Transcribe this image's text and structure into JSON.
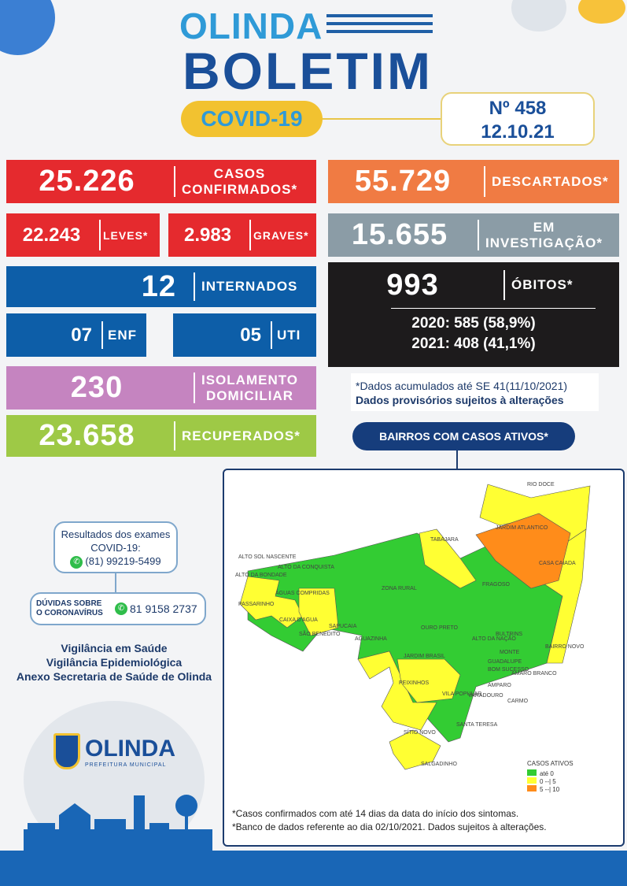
{
  "header": {
    "city": "OLINDA",
    "title": "BOLETIM",
    "badge": "COVID-19",
    "number": "Nº 458",
    "date": "12.10.21"
  },
  "stats": {
    "confirmed": {
      "value": "25.226",
      "label1": "CASOS",
      "label2": "CONFIRMADOS*"
    },
    "discarded": {
      "value": "55.729",
      "label": "DESCARTADOS*"
    },
    "mild": {
      "value": "22.243",
      "label": "LEVES*"
    },
    "severe": {
      "value": "2.983",
      "label": "GRAVES*"
    },
    "investigation": {
      "value": "15.655",
      "label1": "EM",
      "label2": "INVESTIGAÇÃO*"
    },
    "hospitalized": {
      "value": "12",
      "label": "INTERNADOS"
    },
    "deaths": {
      "value": "993",
      "label": "ÓBITOS*",
      "year2020": "2020: 585 (58,9%)",
      "year2021": "2021: 408 (41,1%)"
    },
    "ward": {
      "value": "07",
      "label": "ENF"
    },
    "icu": {
      "value": "05",
      "label": "UTI"
    },
    "isolation": {
      "value": "230",
      "label1": "ISOLAMENTO",
      "label2": "DOMICILIAR"
    },
    "recovered": {
      "value": "23.658",
      "label": "RECUPERADOS*"
    }
  },
  "notes": {
    "accumulated": "*Dados acumulados até SE 41(11/10/2021)",
    "provisional": "Dados provisórios sujeitos à alterações"
  },
  "map": {
    "title": "BAIRROS COM CASOS ATIVOS*",
    "legend_title": "CASOS ATIVOS",
    "legend": [
      {
        "label": "até 0",
        "color": "#33cc33"
      },
      {
        "label": "0 --| 5",
        "color": "#ffff33"
      },
      {
        "label": "5 --| 10",
        "color": "#ff8c1a"
      }
    ],
    "neighborhoods": [
      "RIO DOCE",
      "JARDIM ATLANTICO",
      "CASA CAIADA",
      "TABAJARA",
      "ALTO SOL NASCENTE",
      "ALTO DA CONQUISTA",
      "ALTO DA BONDADE",
      "ÁGUAS COMPRIDAS",
      "PASSARINHO",
      "ZONA RURAL",
      "FRAGOSO",
      "CAIXA D'AGUA",
      "SAPUCAIA",
      "SÃO BENEDITO",
      "AGUAZINHA",
      "OURO PRETO",
      "ALTO DA NAÇÃO",
      "BULTRINS",
      "BAIRRO NOVO",
      "MONTE",
      "JARDIM BRASIL",
      "GUADALUPE",
      "BOM SUCESSO",
      "AMARO BRANCO",
      "PEIXINHOS",
      "AMPARO",
      "VILA POPULAR",
      "VARADOURO",
      "CARMO",
      "SANTA TERESA",
      "SÍTIO NOVO",
      "SALGADINHO"
    ],
    "footnote1": "*Casos confirmados com até 14 dias da data do início dos sintomas.",
    "footnote2": "*Banco de dados referente ao dia 02/10/2021. Dados sujeitos à alterações."
  },
  "contacts": {
    "results_label1": "Resultados dos exames",
    "results_label2": "COVID-19:",
    "results_phone": "(81) 99219-5499",
    "doubts_label1": "DÚVIDAS SOBRE",
    "doubts_label2": "O CORONAVÍRUS",
    "doubts_phone": "81 9158 2737"
  },
  "agencies": [
    "Vigilância em Saúde",
    "Vigilância Epidemiológica",
    "Anexo Secretaria de Saúde de Olinda"
  ],
  "logo": {
    "name": "OLINDA",
    "subtitle": "PREFEITURA MUNICIPAL"
  }
}
